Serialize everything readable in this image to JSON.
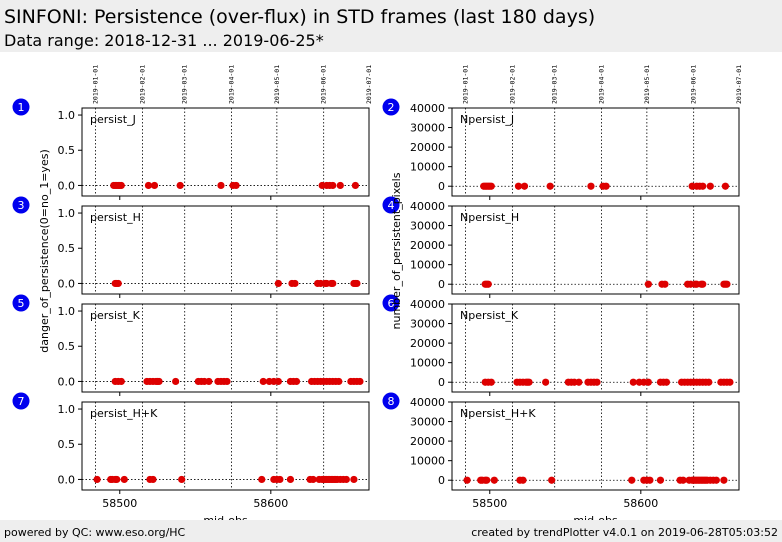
{
  "header": {
    "title": "SINFONI: Persistence (over-flux) in STD frames (last 180 days)",
    "subtitle": "Data range: 2018-12-31 ... 2019-06-25*"
  },
  "footer": {
    "left": "powered by QC: www.eso.org/HC",
    "right": "created by trendPlotter v4.0.1 on 2019-06-28T05:03:52"
  },
  "colors": {
    "marker": "#dd0000",
    "badge": "#0000ee",
    "header_bg": "#eeeeee"
  },
  "chart_data": {
    "type": "scatter",
    "xlabel": "mjd-obs",
    "xlim": [
      58475,
      58665
    ],
    "xticks": [
      58500,
      58600
    ],
    "date_ticks": [
      {
        "label": "2019-01-01",
        "mjd": 58484
      },
      {
        "label": "2019-02-01",
        "mjd": 58515
      },
      {
        "label": "2019-03-01",
        "mjd": 58543
      },
      {
        "label": "2019-04-01",
        "mjd": 58574
      },
      {
        "label": "2019-05-01",
        "mjd": 58604
      },
      {
        "label": "2019-06-01",
        "mjd": 58635
      },
      {
        "label": "2019-07-01",
        "mjd": 58665
      }
    ],
    "left_ylabel": "danger_of_persistence(0=no_1=yes)",
    "right_ylabel": "number_of_persistent_pixels",
    "left_ylim": [
      -0.15,
      1.1
    ],
    "left_yticks": [
      "0.0",
      "0.5",
      "1.0"
    ],
    "left_ytick_values": [
      0,
      0.5,
      1.0
    ],
    "right_ylim": [
      -5000,
      40000
    ],
    "right_yticks": [
      "0",
      "10000",
      "20000",
      "30000",
      "40000"
    ],
    "right_ytick_values": [
      0,
      10000,
      20000,
      30000,
      40000
    ],
    "panels": [
      {
        "id": 1,
        "label": "persist_J",
        "side": "left",
        "x": [
          58496,
          58497,
          58498,
          58499,
          58500,
          58501,
          58519,
          58523,
          58540,
          58567,
          58575,
          58577,
          58634,
          58637,
          58639,
          58641,
          58646,
          58656
        ],
        "y": 0
      },
      {
        "id": 2,
        "label": "Npersist_J",
        "side": "right",
        "x": [
          58496,
          58497,
          58498,
          58499,
          58500,
          58501,
          58519,
          58523,
          58540,
          58567,
          58575,
          58577,
          58634,
          58637,
          58639,
          58641,
          58646,
          58656
        ],
        "y": 0
      },
      {
        "id": 3,
        "label": "persist_H",
        "side": "left",
        "x": [
          58497,
          58498,
          58499,
          58605,
          58614,
          58616,
          58631,
          58633,
          58636,
          58637,
          58640,
          58641,
          58655,
          58656,
          58657
        ],
        "y": 0
      },
      {
        "id": 4,
        "label": "Npersist_H",
        "side": "right",
        "x": [
          58497,
          58498,
          58499,
          58605,
          58614,
          58616,
          58631,
          58633,
          58636,
          58637,
          58640,
          58641,
          58655,
          58656,
          58657
        ],
        "y": 0
      },
      {
        "id": 5,
        "label": "persist_K",
        "side": "left",
        "x": [
          58497,
          58499,
          58501,
          58518,
          58520,
          58522,
          58524,
          58525,
          58526,
          58537,
          58552,
          58554,
          58556,
          58559,
          58565,
          58567,
          58569,
          58571,
          58595,
          58599,
          58602,
          58605,
          58613,
          58615,
          58617,
          58627,
          58629,
          58631,
          58633,
          58635,
          58637,
          58639,
          58641,
          58643,
          58645,
          58653,
          58655,
          58657,
          58659
        ],
        "y": 0
      },
      {
        "id": 6,
        "label": "Npersist_K",
        "side": "right",
        "x": [
          58497,
          58499,
          58501,
          58518,
          58520,
          58522,
          58524,
          58525,
          58526,
          58537,
          58552,
          58554,
          58556,
          58559,
          58565,
          58567,
          58569,
          58571,
          58595,
          58599,
          58602,
          58605,
          58613,
          58615,
          58617,
          58627,
          58629,
          58631,
          58633,
          58635,
          58637,
          58639,
          58641,
          58643,
          58645,
          58653,
          58655,
          58657,
          58659
        ],
        "y": 0
      },
      {
        "id": 7,
        "label": "persist_H+K",
        "side": "left",
        "x": [
          58485,
          58494,
          58495,
          58497,
          58498,
          58503,
          58520,
          58522,
          58541,
          58594,
          58602,
          58604,
          58606,
          58613,
          58626,
          58628,
          58632,
          58634,
          58635,
          58636,
          58637,
          58638,
          58639,
          58640,
          58641,
          58642,
          58643,
          58644,
          58646,
          58648,
          58650,
          58655
        ],
        "y": 0
      },
      {
        "id": 8,
        "label": "Npersist_H+K",
        "side": "right",
        "x": [
          58485,
          58494,
          58495,
          58497,
          58498,
          58503,
          58520,
          58522,
          58541,
          58594,
          58602,
          58604,
          58606,
          58613,
          58626,
          58628,
          58632,
          58634,
          58635,
          58636,
          58637,
          58638,
          58639,
          58640,
          58641,
          58642,
          58643,
          58644,
          58646,
          58648,
          58650,
          58655
        ],
        "y": 0
      }
    ]
  }
}
